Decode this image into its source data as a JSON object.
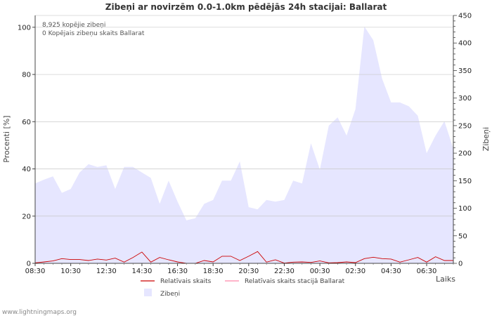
{
  "chart_data": {
    "type": "area",
    "title": "Zibeņi ar novirzēm 0.0-1.0km pēdējās 24h stacijai: Ballarat",
    "xlabel": "Laiks",
    "ylabel_left": "Procenti   [%]",
    "ylabel_right": "Zibeņi",
    "y_left_lim": [
      0,
      105
    ],
    "y_right_lim": [
      0,
      450
    ],
    "y_left_ticks": [
      0,
      20,
      40,
      60,
      80,
      100
    ],
    "y_right_ticks": [
      0,
      50,
      100,
      150,
      200,
      250,
      300,
      350,
      400,
      450
    ],
    "x_tick_labels": [
      "08:30",
      "10:30",
      "12:30",
      "14:30",
      "16:30",
      "18:30",
      "20:30",
      "22:30",
      "00:30",
      "02:30",
      "04:30",
      "06:30"
    ],
    "x_tick_index": [
      0,
      4,
      8,
      12,
      16,
      20,
      24,
      28,
      32,
      36,
      40,
      44
    ],
    "annotations": [
      "8,925 kopējie zibeņi",
      "0 Kopējais zibeņu skaits Ballarat"
    ],
    "legend": {
      "relative": "Relatīvais skaits",
      "relative_station": "Relatīvais skaits stacijā Ballarat",
      "lightning": "Zibeņi"
    },
    "series": [
      {
        "name": "Zibeņi",
        "axis": "right",
        "color": "#e6e6ff",
        "values": [
          145,
          152,
          158,
          128,
          135,
          165,
          180,
          175,
          178,
          135,
          175,
          175,
          165,
          155,
          108,
          150,
          112,
          78,
          82,
          108,
          115,
          150,
          150,
          185,
          102,
          98,
          115,
          112,
          115,
          150,
          145,
          218,
          170,
          250,
          265,
          232,
          280,
          430,
          405,
          335,
          292,
          292,
          285,
          268,
          200,
          232,
          258,
          208
        ]
      },
      {
        "name": "Relatīvais skaits",
        "axis": "left",
        "color": "#cc0000",
        "values": [
          0.2,
          0.6,
          1.0,
          2.0,
          1.6,
          1.6,
          1.2,
          1.8,
          1.4,
          2.2,
          0.5,
          2.5,
          4.8,
          0.5,
          2.5,
          1.5,
          0.6,
          0.0,
          0.0,
          1.2,
          0.6,
          3.0,
          3.0,
          1.2,
          3.0,
          5.0,
          0.5,
          1.5,
          0.1,
          0.5,
          0.6,
          0.4,
          1.0,
          0.2,
          0.3,
          0.6,
          0.3,
          2.0,
          2.6,
          2.0,
          1.8,
          0.5,
          1.5,
          2.5,
          0.5,
          2.8,
          1.2,
          1.2
        ]
      },
      {
        "name": "Relatīvais skaits stacijā Ballarat",
        "axis": "left",
        "color": "#ff88aa",
        "values": [
          0,
          0,
          0,
          0,
          0,
          0,
          0,
          0,
          0,
          0,
          0,
          0,
          0,
          0,
          0,
          0,
          0,
          0,
          0,
          0,
          0,
          0,
          0,
          0,
          0,
          0,
          0,
          0,
          0,
          0,
          0,
          0,
          0,
          0,
          0,
          0,
          0,
          0,
          0,
          0,
          0,
          0,
          0,
          0,
          0,
          0,
          0,
          0
        ]
      }
    ],
    "footer": "www.lightningmaps.org"
  }
}
